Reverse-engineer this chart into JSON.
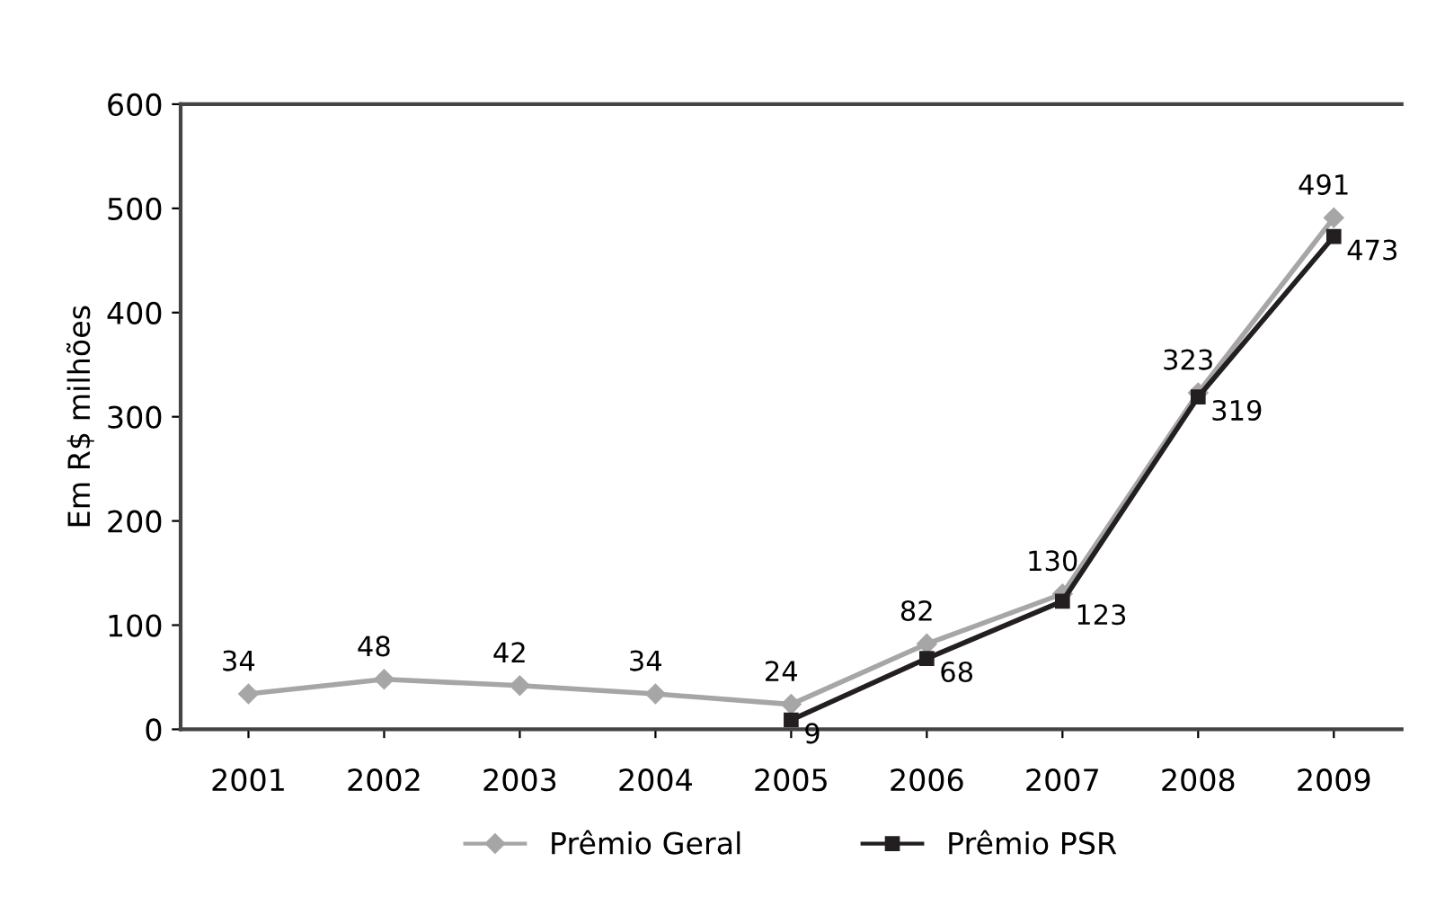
{
  "chart_data": {
    "type": "line",
    "ylabel": "Em R$ milhões",
    "categories": [
      "2001",
      "2002",
      "2003",
      "2004",
      "2005",
      "2006",
      "2007",
      "2008",
      "2009"
    ],
    "series": [
      {
        "name": "Prêmio Geral",
        "color": "#a6a6a6",
        "marker": "diamond",
        "values": [
          34,
          48,
          42,
          34,
          24,
          82,
          130,
          323,
          491
        ]
      },
      {
        "name": "Prêmio PSR",
        "color": "#231f20",
        "marker": "square",
        "values": [
          null,
          null,
          null,
          null,
          9,
          68,
          123,
          319,
          473
        ]
      }
    ],
    "ylim": [
      0,
      600
    ],
    "yticks": [
      0,
      100,
      200,
      300,
      400,
      500,
      600
    ],
    "data_labels": true,
    "legend": "bottom",
    "grid": false,
    "line_style": "solid"
  }
}
